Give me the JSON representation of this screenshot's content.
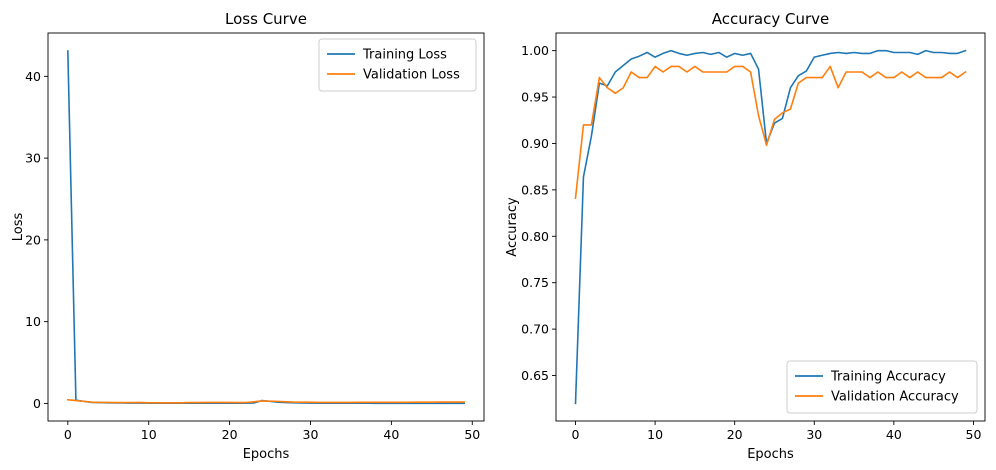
{
  "chart_data": [
    {
      "type": "line",
      "title": "Loss Curve",
      "xlabel": "Epochs",
      "ylabel": "Loss",
      "xlim": [
        -2.45,
        51.45
      ],
      "ylim": [
        -2.15,
        45.3
      ],
      "xticks": [
        0,
        10,
        20,
        30,
        40,
        50
      ],
      "yticks": [
        0,
        10,
        20,
        30,
        40
      ],
      "legend_position": "top-right",
      "grid": false,
      "x": [
        0,
        1,
        2,
        3,
        4,
        5,
        6,
        7,
        8,
        9,
        10,
        11,
        12,
        13,
        14,
        15,
        16,
        17,
        18,
        19,
        20,
        21,
        22,
        23,
        24,
        25,
        26,
        27,
        28,
        29,
        30,
        31,
        32,
        33,
        34,
        35,
        36,
        37,
        38,
        39,
        40,
        41,
        42,
        43,
        44,
        45,
        46,
        47,
        48,
        49
      ],
      "series": [
        {
          "name": "Training Loss",
          "color": "#1f77b4",
          "values": [
            43.1,
            0.4,
            0.25,
            0.12,
            0.1,
            0.08,
            0.06,
            0.05,
            0.04,
            0.04,
            0.03,
            0.03,
            0.02,
            0.02,
            0.02,
            0.02,
            0.02,
            0.02,
            0.02,
            0.02,
            0.02,
            0.02,
            0.03,
            0.05,
            0.35,
            0.25,
            0.15,
            0.1,
            0.08,
            0.05,
            0.04,
            0.03,
            0.03,
            0.02,
            0.02,
            0.02,
            0.02,
            0.02,
            0.01,
            0.01,
            0.01,
            0.01,
            0.01,
            0.01,
            0.01,
            0.01,
            0.01,
            0.01,
            0.01,
            0.01
          ]
        },
        {
          "name": "Validation Loss",
          "color": "#ff7f0e",
          "values": [
            0.45,
            0.35,
            0.25,
            0.15,
            0.12,
            0.12,
            0.1,
            0.1,
            0.1,
            0.12,
            0.08,
            0.08,
            0.08,
            0.08,
            0.08,
            0.1,
            0.1,
            0.12,
            0.12,
            0.12,
            0.12,
            0.1,
            0.1,
            0.2,
            0.3,
            0.28,
            0.25,
            0.2,
            0.15,
            0.15,
            0.15,
            0.12,
            0.12,
            0.12,
            0.12,
            0.12,
            0.13,
            0.13,
            0.13,
            0.13,
            0.14,
            0.14,
            0.14,
            0.15,
            0.15,
            0.15,
            0.16,
            0.16,
            0.16,
            0.17
          ]
        }
      ]
    },
    {
      "type": "line",
      "title": "Accuracy Curve",
      "xlabel": "Epochs",
      "ylabel": "Accuracy",
      "xlim": [
        -2.45,
        51.45
      ],
      "ylim": [
        0.601,
        1.019
      ],
      "xticks": [
        0,
        10,
        20,
        30,
        40,
        50
      ],
      "yticks": [
        0.65,
        0.7,
        0.75,
        0.8,
        0.85,
        0.9,
        0.95,
        1.0
      ],
      "ytick_labels": [
        "0.65",
        "0.70",
        "0.75",
        "0.80",
        "0.85",
        "0.90",
        "0.95",
        "1.00"
      ],
      "legend_position": "bottom-right",
      "grid": false,
      "x": [
        0,
        1,
        2,
        3,
        4,
        5,
        6,
        7,
        8,
        9,
        10,
        11,
        12,
        13,
        14,
        15,
        16,
        17,
        18,
        19,
        20,
        21,
        22,
        23,
        24,
        25,
        26,
        27,
        28,
        29,
        30,
        31,
        32,
        33,
        34,
        35,
        36,
        37,
        38,
        39,
        40,
        41,
        42,
        43,
        44,
        45,
        46,
        47,
        48,
        49
      ],
      "series": [
        {
          "name": "Training Accuracy",
          "color": "#1f77b4",
          "values": [
            0.62,
            0.864,
            0.908,
            0.965,
            0.962,
            0.977,
            0.984,
            0.991,
            0.994,
            0.998,
            0.993,
            0.997,
            1.0,
            0.997,
            0.995,
            0.997,
            0.998,
            0.996,
            0.998,
            0.993,
            0.997,
            0.995,
            0.997,
            0.98,
            0.9,
            0.922,
            0.927,
            0.96,
            0.973,
            0.978,
            0.993,
            0.995,
            0.997,
            0.998,
            0.997,
            0.998,
            0.997,
            0.997,
            1.0,
            1.0,
            0.998,
            0.998,
            0.998,
            0.996,
            1.0,
            0.998,
            0.998,
            0.997,
            0.997,
            1.0
          ]
        },
        {
          "name": "Validation Accuracy",
          "color": "#ff7f0e",
          "values": [
            0.841,
            0.92,
            0.92,
            0.971,
            0.96,
            0.954,
            0.96,
            0.977,
            0.971,
            0.971,
            0.983,
            0.977,
            0.983,
            0.983,
            0.977,
            0.983,
            0.977,
            0.977,
            0.977,
            0.977,
            0.983,
            0.983,
            0.977,
            0.93,
            0.898,
            0.926,
            0.933,
            0.937,
            0.965,
            0.971,
            0.971,
            0.971,
            0.983,
            0.96,
            0.977,
            0.977,
            0.977,
            0.971,
            0.977,
            0.971,
            0.971,
            0.977,
            0.971,
            0.977,
            0.971,
            0.971,
            0.971,
            0.977,
            0.971,
            0.977
          ]
        }
      ]
    }
  ]
}
